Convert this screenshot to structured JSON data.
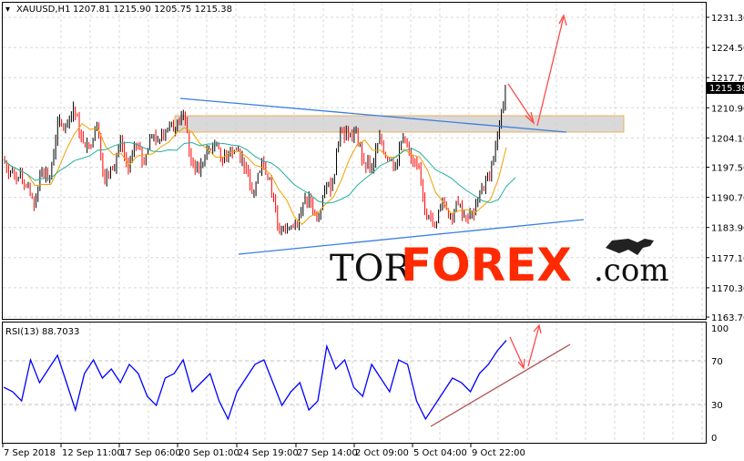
{
  "header": {
    "symbol": "XAUUSD,H1",
    "ohlc": "1207.81 1215.90 1205.75 1215.38"
  },
  "rsi_header": "RSI(13) 88.7033",
  "current_price_label": "1215.38",
  "logo": {
    "part1": "TOR",
    "part2": "FOREX",
    "part3": ".com"
  },
  "colors": {
    "bull": "#000000",
    "bear": "#ff0000",
    "ma_fast": "#f0a000",
    "ma_slow": "#20b0a0",
    "trendline": "#3a7fe0",
    "rsi": "#0000ff",
    "arrow": "#ff4a4a",
    "rsi_trendline": "#b05050",
    "zone": "#d0d0d0"
  },
  "chart_data": [
    {
      "type": "candlestick",
      "title": "XAUUSD,H1",
      "ylim": [
        1163.7,
        1231.3
      ],
      "yticks": [
        "1231.30",
        "1224.50",
        "1217.70",
        "1210.90",
        "1204.10",
        "1197.50",
        "1190.70",
        "1183.90",
        "1177.10",
        "1170.30",
        "1163.70"
      ],
      "xticks": [
        "7 Sep 2018",
        "12 Sep 11:00",
        "17 Sep 06:00",
        "20 Sep 01:00",
        "24 Sep 19:00",
        "27 Sep 14:00",
        "2 Oct 09:00",
        "5 Oct 04:00",
        "9 Oct 22:00"
      ],
      "closes": [
        1199.2,
        1196.2,
        1195.1,
        1193.1,
        1189.0,
        1197.2,
        1195.1,
        1207.5,
        1206.4,
        1211.0,
        1204.4,
        1202.3,
        1207.5,
        1194.1,
        1197.2,
        1203.4,
        1197.2,
        1202.3,
        1198.2,
        1204.4,
        1203.4,
        1206.4,
        1206.4,
        1209.5,
        1199.2,
        1196.2,
        1201.3,
        1202.3,
        1199.2,
        1201.3,
        1201.3,
        1197.2,
        1192.0,
        1199.2,
        1195.1,
        1183.8,
        1182.8,
        1183.8,
        1187.9,
        1191.0,
        1185.9,
        1192.0,
        1194.1,
        1206.4,
        1204.4,
        1205.4,
        1198.2,
        1197.2,
        1204.4,
        1199.2,
        1198.2,
        1204.4,
        1199.2,
        1197.2,
        1185.9,
        1184.9,
        1190.0,
        1186.9,
        1189.0,
        1185.9,
        1186.9,
        1193.1,
        1195.1,
        1204.4,
        1215.38
      ],
      "last": 1215.38,
      "grid": true
    },
    {
      "type": "line",
      "title": "RSI(13) 88.7033",
      "ylim": [
        0,
        100
      ],
      "yticks": [
        "100",
        "70",
        "30",
        "0"
      ],
      "values": [
        45.8,
        41.7,
        33.3,
        70.8,
        50,
        62.5,
        75,
        50,
        25,
        58.3,
        70.8,
        54.2,
        62.5,
        50,
        66.7,
        58.3,
        37.5,
        29.2,
        54.2,
        58.3,
        70.8,
        41.7,
        50,
        58.3,
        33.3,
        16.7,
        41.7,
        54.2,
        66.7,
        70.8,
        50,
        29.2,
        41.7,
        50,
        25,
        33.3,
        83.3,
        62.5,
        70.8,
        45.8,
        37.5,
        66.7,
        54.2,
        41.7,
        70.8,
        66.7,
        33.3,
        16.7,
        29.2,
        41.7,
        54.2,
        50,
        41.7,
        58.3,
        66.7,
        79.2,
        88.7
      ],
      "grid": true
    }
  ]
}
